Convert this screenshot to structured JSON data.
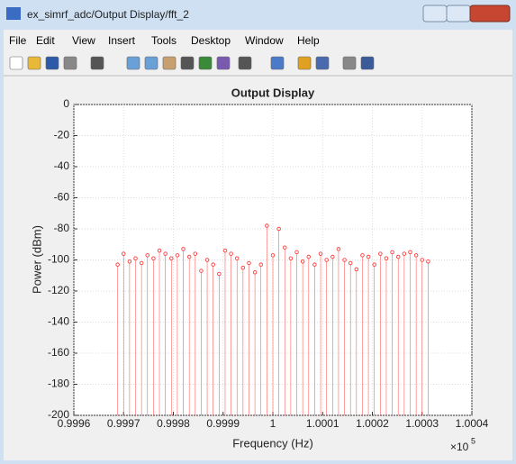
{
  "window_title": "ex_simrf_adc/Output Display/fft_2",
  "menu": [
    "File",
    "Edit",
    "View",
    "Insert",
    "Tools",
    "Desktop",
    "Window",
    "Help"
  ],
  "chart_data": {
    "type": "stem",
    "title": "Output Display",
    "xlabel": "Frequency (Hz)",
    "ylabel": "Power (dBm)",
    "x_multiplier": {
      "base": "×10",
      "power": "5"
    },
    "color": "#ff3b3b",
    "grid": true,
    "x": [
      0.999688,
      0.9997,
      0.999712,
      0.999724,
      0.999736,
      0.999748,
      0.99976,
      0.999772,
      0.999784,
      0.999796,
      0.999808,
      0.99982,
      0.999832,
      0.999844,
      0.999856,
      0.999868,
      0.99988,
      0.999892,
      0.999904,
      0.999916,
      0.999928,
      0.99994,
      0.999952,
      0.999964,
      0.999976,
      0.999988,
      1.0,
      1.000012,
      1.000024,
      1.000036,
      1.000048,
      1.00006,
      1.000072,
      1.000084,
      1.000096,
      1.000108,
      1.00012,
      1.000132,
      1.000144,
      1.000156,
      1.000168,
      1.00018,
      1.000192,
      1.000204,
      1.000216,
      1.000228,
      1.00024,
      1.000252,
      1.000264,
      1.000276,
      1.000288,
      1.0003,
      1.000312
    ],
    "values": [
      -103,
      -96,
      -101,
      -99,
      -102,
      -97,
      -99,
      -94,
      -96,
      -99,
      -97,
      -93,
      -98,
      -96,
      -107,
      -100,
      -103,
      -109,
      -94,
      -96,
      -99,
      -105,
      -102,
      -108,
      -103,
      -78,
      -97,
      -80,
      -92,
      -99,
      -95,
      -101,
      -98,
      -103,
      -96,
      -100,
      -98,
      -93,
      -100,
      -102,
      -106,
      -97,
      -98,
      -103,
      -96,
      -99,
      -95,
      -98,
      -96,
      -95,
      -97,
      -100,
      -101
    ],
    "xlim": [
      0.9996,
      1.0004
    ],
    "xticks": [
      0.9996,
      0.9997,
      0.9998,
      0.9999,
      1,
      1.0001,
      1.0002,
      1.0003,
      1.0004
    ],
    "ylim": [
      -200,
      0
    ],
    "yticks": [
      0,
      -20,
      -40,
      -60,
      -80,
      -100,
      -120,
      -140,
      -160,
      -180,
      -200
    ]
  }
}
